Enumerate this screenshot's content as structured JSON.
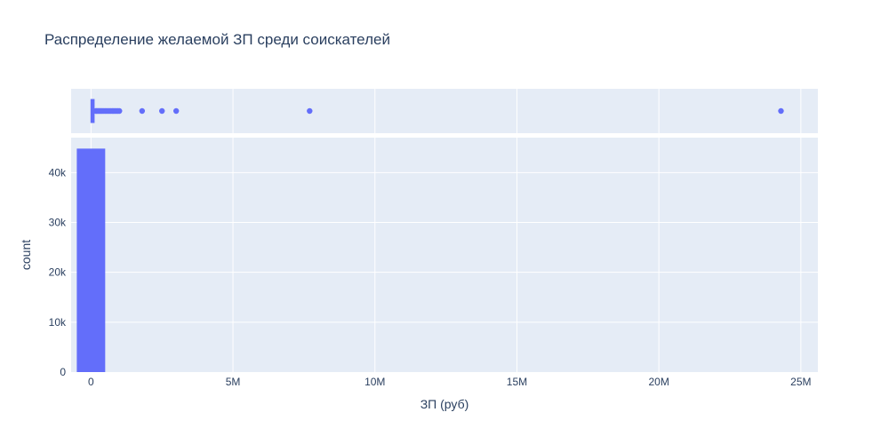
{
  "chart_data": {
    "type": "histogram",
    "title": "Распределение желаемой ЗП среди соискателей",
    "xlabel": "ЗП (руб)",
    "ylabel": "count",
    "x_range": [
      -700000,
      25600000
    ],
    "y_range": [
      0,
      47000
    ],
    "x_ticks": [
      {
        "value": 0,
        "label": "0"
      },
      {
        "value": 5000000,
        "label": "5M"
      },
      {
        "value": 10000000,
        "label": "10M"
      },
      {
        "value": 15000000,
        "label": "15M"
      },
      {
        "value": 20000000,
        "label": "20M"
      },
      {
        "value": 25000000,
        "label": "25M"
      }
    ],
    "y_ticks": [
      {
        "value": 0,
        "label": "0"
      },
      {
        "value": 10000,
        "label": "10k"
      },
      {
        "value": 20000,
        "label": "20k"
      },
      {
        "value": 30000,
        "label": "30k"
      },
      {
        "value": 40000,
        "label": "40k"
      }
    ],
    "bins": [
      {
        "x0": -500000,
        "x1": 500000,
        "count": 44800
      }
    ],
    "marginal_box": {
      "q1": 30000,
      "median": 50000,
      "q3": 80000,
      "lower_fence": 0,
      "upper_fence": 155000,
      "outliers": [
        170000,
        200000,
        240000,
        280000,
        320000,
        360000,
        400000,
        450000,
        500000,
        550000,
        600000,
        650000,
        700000,
        750000,
        800000,
        850000,
        900000,
        950000,
        1000000,
        1800000,
        2500000,
        3000000,
        7700000,
        24300000
      ]
    },
    "colors": {
      "bar": "#636efa",
      "plot_bg": "#e5ecf6",
      "grid": "#ffffff",
      "text": "#2a3f5f"
    },
    "grid": true,
    "legend": "none"
  }
}
